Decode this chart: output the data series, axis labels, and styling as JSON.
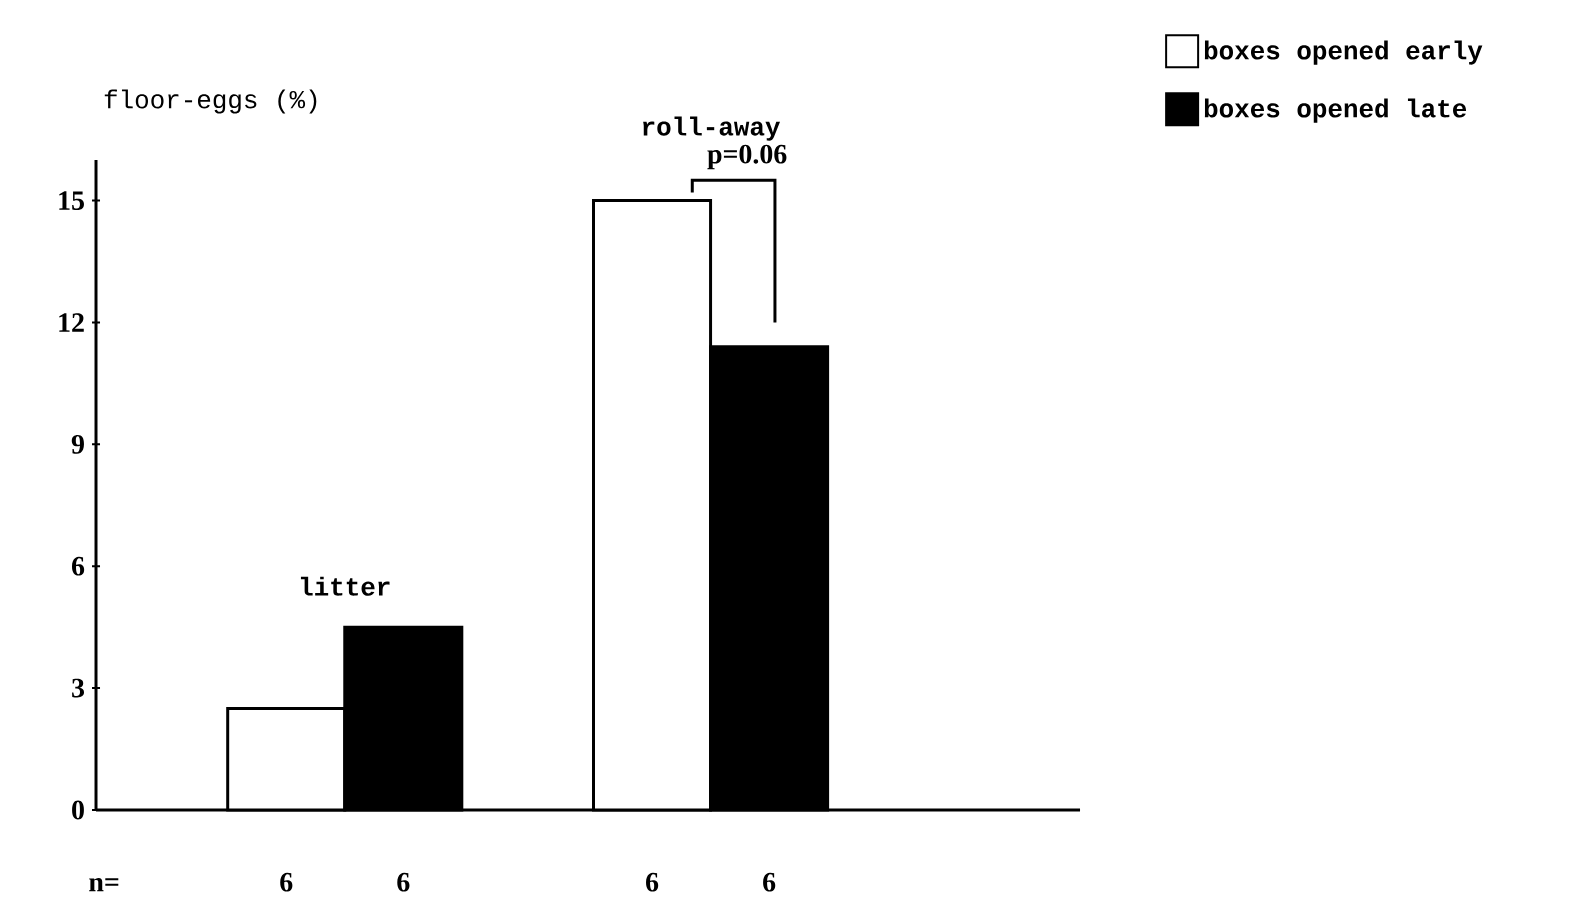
{
  "chart_data": {
    "type": "bar",
    "ylabel": "floor-eggs (%)",
    "categories": [
      "litter",
      "roll-away"
    ],
    "series": [
      {
        "name": "boxes opened early",
        "color": "#ffffff",
        "values": [
          2.5,
          15
        ]
      },
      {
        "name": "boxes opened late",
        "color": "#000000",
        "values": [
          4.5,
          11.4
        ]
      }
    ],
    "ylim": [
      0,
      16
    ],
    "yticks": [
      0,
      3,
      6,
      9,
      12,
      15
    ],
    "grid": false,
    "legend": "top right",
    "annotations": [
      "n=",
      "6",
      "6",
      "6",
      "6",
      "p=0.06"
    ]
  }
}
